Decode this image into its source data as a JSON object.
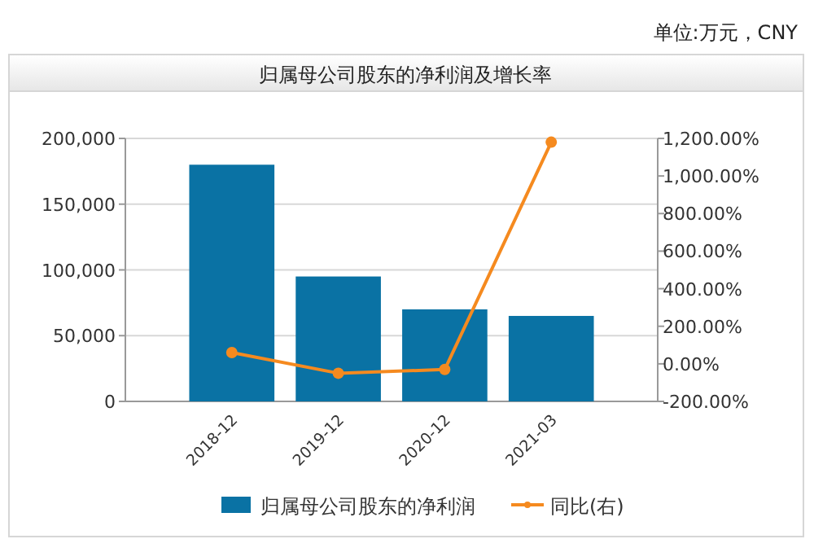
{
  "chart_data": {
    "type": "bar",
    "title": "归属母公司股东的净利润及增长率",
    "annotations": [
      "单位:万元，CNY"
    ],
    "categories": [
      "2018-12",
      "2019-12",
      "2020-12",
      "2021-03"
    ],
    "series": [
      {
        "name": "归属母公司股东的净利润",
        "color": "#0a72a4",
        "values": [
          180000,
          95000,
          70000,
          65000
        ]
      },
      {
        "name": "同比(右)",
        "type": "line",
        "axis": "y2",
        "color": "#f58a1f",
        "marker": "circle",
        "values": [
          60,
          -50,
          -30,
          1180
        ]
      }
    ],
    "ylim": [
      0,
      200000
    ],
    "yticks": [
      {
        "value": 0,
        "label": "0"
      },
      {
        "value": 50000,
        "label": "50,000"
      },
      {
        "value": 100000,
        "label": "100,000"
      },
      {
        "value": 150000,
        "label": "150,000"
      },
      {
        "value": 200000,
        "label": "200,000"
      }
    ],
    "y2lim": [
      -200,
      1200
    ],
    "y2ticks": [
      {
        "value": -200,
        "label": "-200.00%"
      },
      {
        "value": 0,
        "label": "0.00%"
      },
      {
        "value": 200,
        "label": "200.00%"
      },
      {
        "value": 400,
        "label": "400.00%"
      },
      {
        "value": 600,
        "label": "600.00%"
      },
      {
        "value": 800,
        "label": "800.00%"
      },
      {
        "value": 1000,
        "label": "1,000.00%"
      },
      {
        "value": 1200,
        "label": "1,200.00%"
      }
    ],
    "grid": "y",
    "legend": "bottom"
  }
}
